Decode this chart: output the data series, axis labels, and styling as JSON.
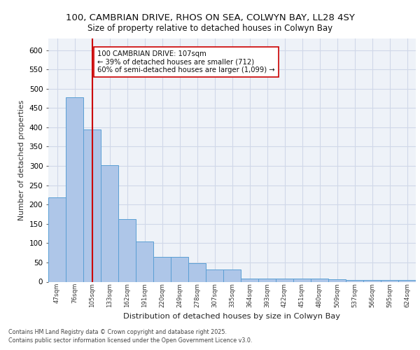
{
  "title_line1": "100, CAMBRIAN DRIVE, RHOS ON SEA, COLWYN BAY, LL28 4SY",
  "title_line2": "Size of property relative to detached houses in Colwyn Bay",
  "xlabel": "Distribution of detached houses by size in Colwyn Bay",
  "ylabel": "Number of detached properties",
  "categories": [
    "47sqm",
    "76sqm",
    "105sqm",
    "133sqm",
    "162sqm",
    "191sqm",
    "220sqm",
    "249sqm",
    "278sqm",
    "307sqm",
    "335sqm",
    "364sqm",
    "393sqm",
    "422sqm",
    "451sqm",
    "480sqm",
    "509sqm",
    "537sqm",
    "566sqm",
    "595sqm",
    "624sqm"
  ],
  "values": [
    218,
    478,
    395,
    302,
    163,
    105,
    65,
    65,
    48,
    31,
    31,
    9,
    9,
    9,
    9,
    9,
    6,
    4,
    4,
    4,
    4
  ],
  "bar_color": "#aec6e8",
  "bar_edge_color": "#5a9fd4",
  "grid_color": "#d0d8e8",
  "background_color": "#eef2f8",
  "vline_x": 2,
  "vline_color": "#cc0000",
  "annotation_text": "100 CAMBRIAN DRIVE: 107sqm\n← 39% of detached houses are smaller (712)\n60% of semi-detached houses are larger (1,099) →",
  "annotation_box_color": "#ffffff",
  "annotation_box_edge": "#cc0000",
  "ylim": [
    0,
    630
  ],
  "yticks": [
    0,
    50,
    100,
    150,
    200,
    250,
    300,
    350,
    400,
    450,
    500,
    550,
    600
  ],
  "footer_line1": "Contains HM Land Registry data © Crown copyright and database right 2025.",
  "footer_line2": "Contains public sector information licensed under the Open Government Licence v3.0."
}
